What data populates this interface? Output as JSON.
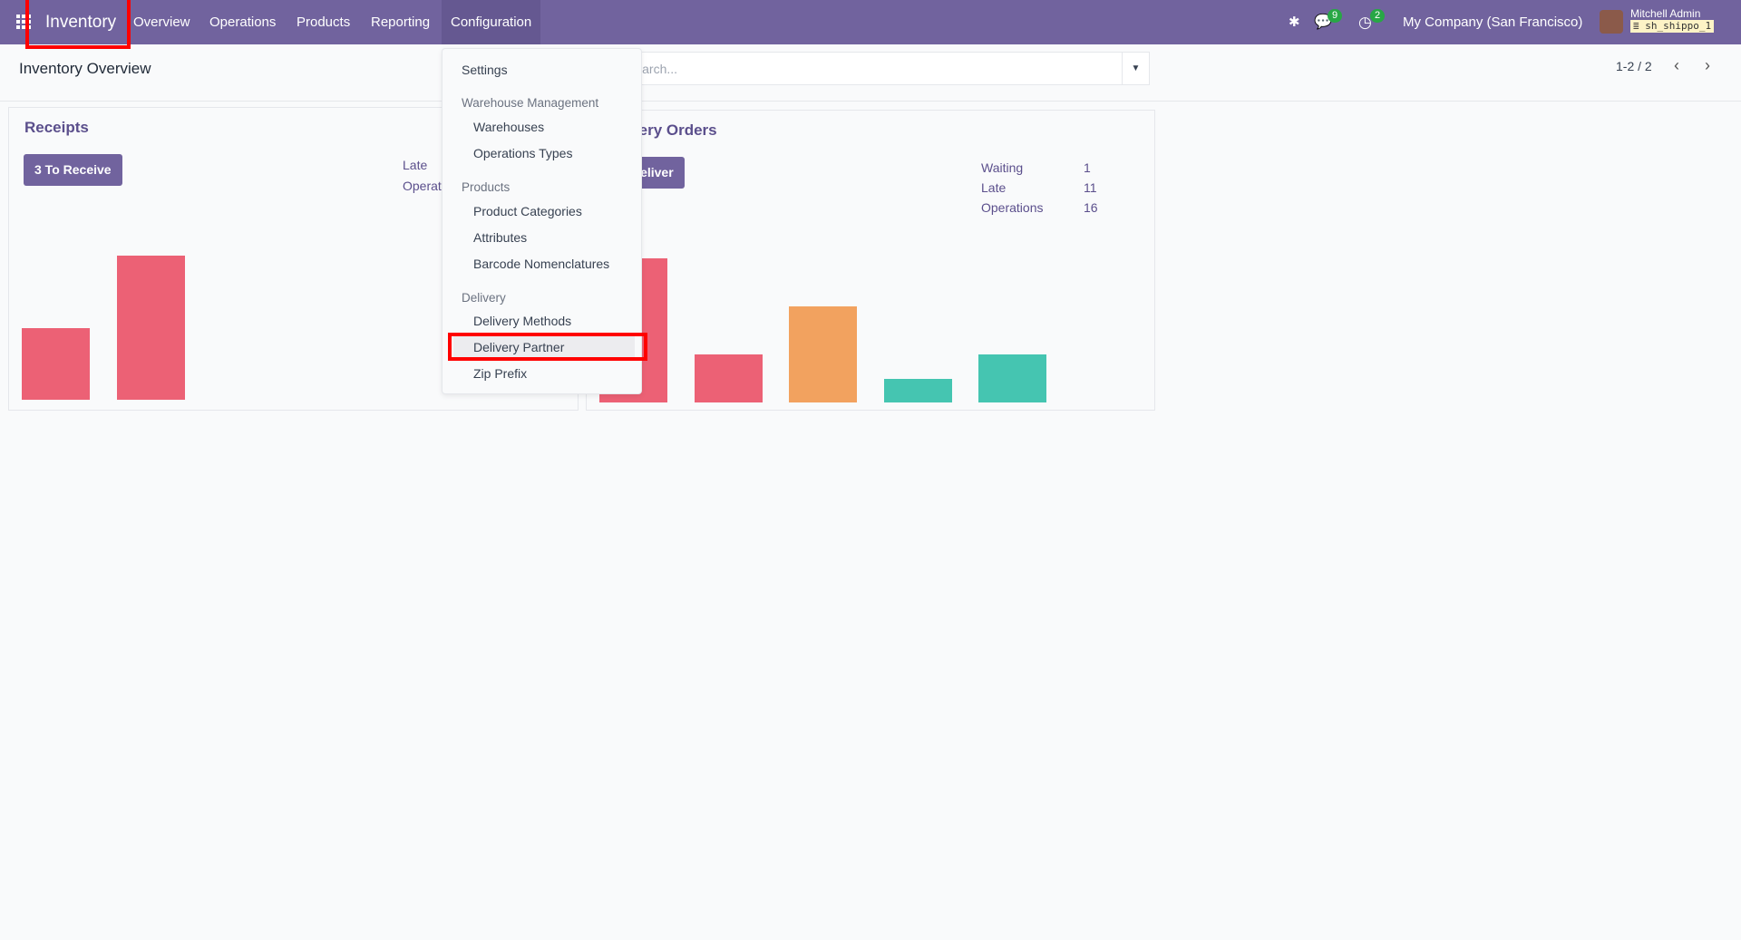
{
  "navbar": {
    "app": "Inventory",
    "items": [
      "Overview",
      "Operations",
      "Products",
      "Reporting",
      "Configuration"
    ],
    "messages_count": "9",
    "activities_count": "2",
    "company": "My Company (San Francisco)",
    "user": "Mitchell Admin",
    "database": "sh_shippo_1"
  },
  "control": {
    "title": "Inventory Overview",
    "search_placeholder": "Search...",
    "pager": "1-2 / 2"
  },
  "config_menu": {
    "settings": "Settings",
    "sections": [
      {
        "header": "Warehouse Management",
        "items": [
          "Warehouses",
          "Operations Types"
        ]
      },
      {
        "header": "Products",
        "items": [
          "Product Categories",
          "Attributes",
          "Barcode Nomenclatures"
        ]
      },
      {
        "header": "Delivery",
        "items": [
          "Delivery Methods",
          "Delivery Partner",
          "Zip Prefix"
        ]
      }
    ],
    "highlighted": "Delivery Partner"
  },
  "receipts": {
    "title": "Receipts",
    "button": "3 To Receive",
    "stats": [
      {
        "label": "Late"
      },
      {
        "label": "Operations"
      }
    ],
    "graph": [
      1,
      2
    ],
    "colors": [
      "#ec6175",
      "#ec6175"
    ]
  },
  "delivery": {
    "title": "Delivery Orders",
    "button": "To Deliver",
    "stats": [
      {
        "label": "Waiting",
        "value": "1"
      },
      {
        "label": "Late",
        "value": "11"
      },
      {
        "label": "Operations",
        "value": "16"
      }
    ],
    "graph": [
      6,
      2,
      4,
      1,
      2
    ],
    "colors": [
      "#ec6175",
      "#ec6175",
      "#f2a25f",
      "#45c5b1",
      "#45c5b1"
    ]
  },
  "colors": {
    "navbar": "#71639e",
    "highlight": "#ff0000"
  }
}
